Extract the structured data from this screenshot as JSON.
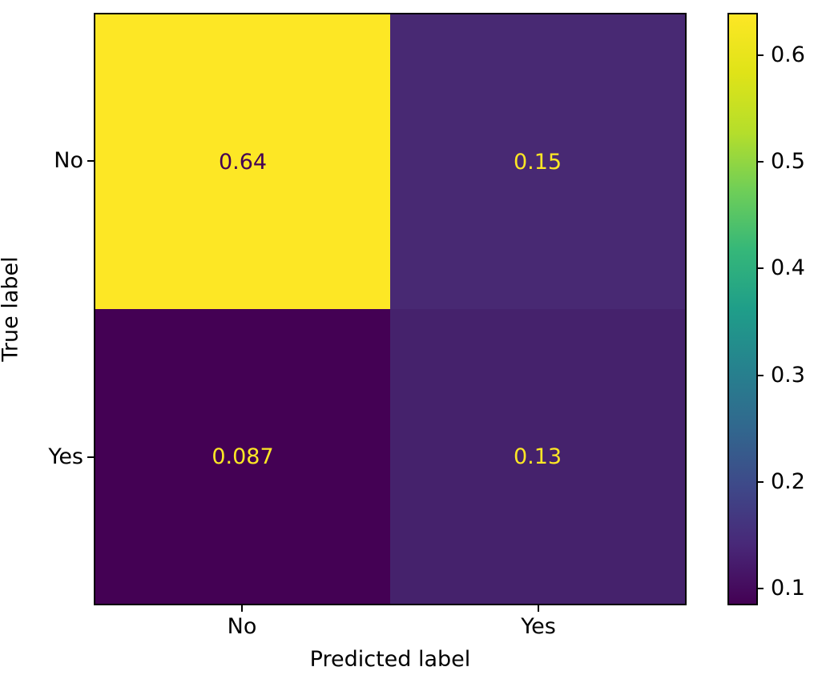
{
  "chart_data": {
    "type": "heatmap",
    "subtype": "confusion-matrix",
    "title": "",
    "xlabel": "Predicted label",
    "ylabel": "True label",
    "x_categories": [
      "No",
      "Yes"
    ],
    "y_categories": [
      "No",
      "Yes"
    ],
    "values": [
      [
        0.64,
        0.15
      ],
      [
        0.087,
        0.13
      ]
    ],
    "cells": [
      {
        "true_label": "No",
        "predicted_label": "No",
        "value": 0.64,
        "label": "0.64",
        "bg": "#fde725",
        "fg": "#440154"
      },
      {
        "true_label": "No",
        "predicted_label": "Yes",
        "value": 0.15,
        "label": "0.15",
        "bg": "#482973",
        "fg": "#fde725"
      },
      {
        "true_label": "Yes",
        "predicted_label": "No",
        "value": 0.087,
        "label": "0.087",
        "bg": "#440154",
        "fg": "#fde725"
      },
      {
        "true_label": "Yes",
        "predicted_label": "Yes",
        "value": 0.13,
        "label": "0.13",
        "bg": "#45226c",
        "fg": "#fde725"
      }
    ],
    "colormap": "viridis",
    "grid": false,
    "legend": false,
    "colorbar": {
      "range": [
        0.087,
        0.64
      ],
      "ticks": [
        "0.6",
        "0.5",
        "0.4",
        "0.3",
        "0.2",
        "0.1"
      ],
      "tick_values": [
        0.6,
        0.5,
        0.4,
        0.3,
        0.2,
        0.1
      ],
      "gradient_stops": [
        "#440154",
        "#482878",
        "#3e4989",
        "#31688e",
        "#26828e",
        "#1f9e89",
        "#35b779",
        "#6ece58",
        "#b5de2b",
        "#dfe318",
        "#fde725"
      ]
    },
    "colors": {
      "background": "#ffffff",
      "spine": "#000000",
      "text": "#000000"
    }
  }
}
